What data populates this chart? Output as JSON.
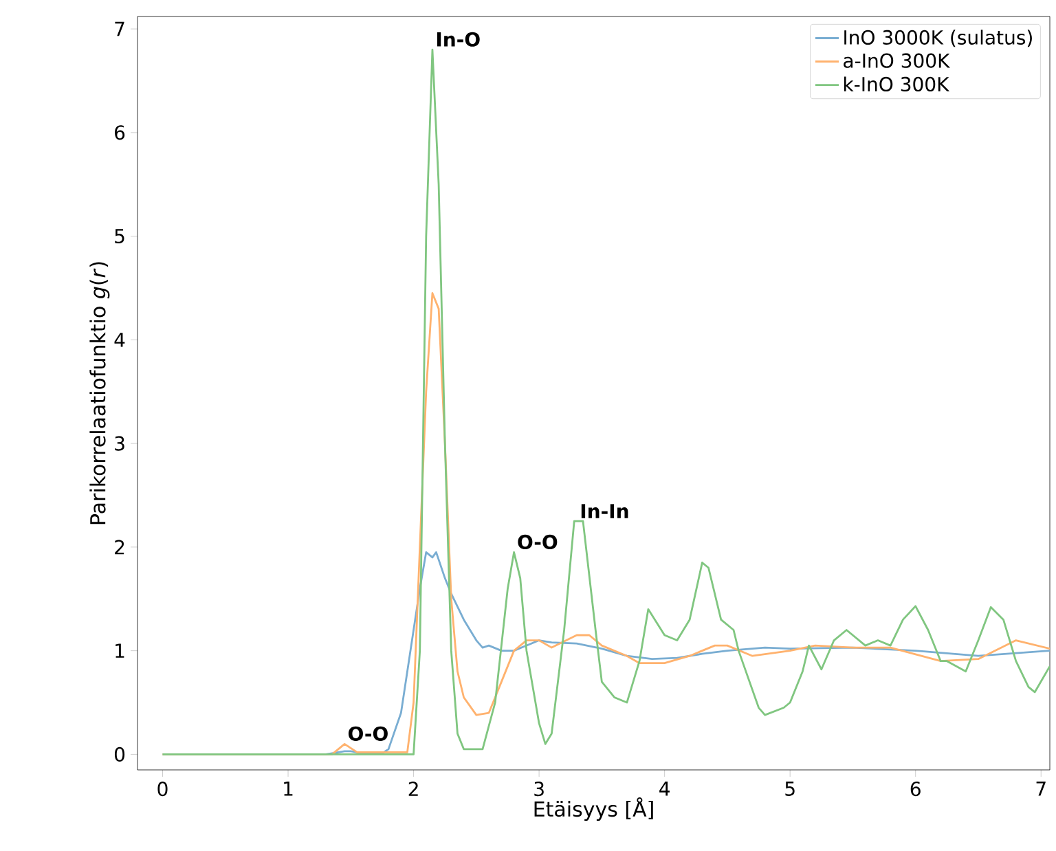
{
  "chart_data": {
    "type": "line",
    "xlabel": "Etäisyys [Å]",
    "ylabel": "Parikorrelaatiofunktio *g*(*r*)",
    "xlim": [
      -0.2,
      7.07
    ],
    "ylim": [
      -0.15,
      7.12
    ],
    "xticks": [
      0,
      1,
      2,
      3,
      4,
      5,
      6,
      7
    ],
    "yticks": [
      0,
      1,
      2,
      3,
      4,
      5,
      6,
      7
    ],
    "legend": "top right",
    "grid": false,
    "marker": "none",
    "line_style": "solid",
    "series": [
      {
        "name": "InO 3000K (sulatus)",
        "color": "#79add2",
        "x": [
          0,
          1.3,
          1.45,
          1.5,
          1.6,
          1.75,
          1.8,
          1.9,
          2.0,
          2.05,
          2.1,
          2.15,
          2.18,
          2.25,
          2.3,
          2.4,
          2.5,
          2.55,
          2.6,
          2.7,
          2.8,
          2.9,
          3.0,
          3.1,
          3.3,
          3.5,
          3.7,
          3.9,
          4.1,
          4.3,
          4.5,
          4.8,
          5.0,
          5.5,
          6.0,
          6.5,
          7.07
        ],
        "values": [
          0,
          0,
          0.03,
          0.03,
          0.01,
          0.01,
          0.05,
          0.4,
          1.2,
          1.6,
          1.95,
          1.9,
          1.95,
          1.7,
          1.55,
          1.3,
          1.1,
          1.03,
          1.05,
          1.0,
          1.0,
          1.05,
          1.1,
          1.08,
          1.07,
          1.02,
          0.95,
          0.92,
          0.93,
          0.97,
          1.0,
          1.03,
          1.02,
          1.03,
          1.0,
          0.95,
          1.0
        ]
      },
      {
        "name": "a-InO 300K",
        "color": "#ffb26e",
        "x": [
          0,
          1.35,
          1.45,
          1.55,
          1.95,
          2.0,
          2.05,
          2.1,
          2.15,
          2.2,
          2.25,
          2.3,
          2.35,
          2.4,
          2.5,
          2.6,
          2.7,
          2.8,
          2.9,
          3.0,
          3.1,
          3.3,
          3.4,
          3.5,
          3.7,
          3.8,
          4.0,
          4.2,
          4.4,
          4.5,
          4.7,
          5.0,
          5.2,
          5.5,
          5.8,
          6.2,
          6.5,
          6.8,
          7.07
        ],
        "values": [
          0,
          0,
          0.1,
          0.02,
          0.02,
          0.5,
          2.0,
          3.5,
          4.45,
          4.3,
          3.0,
          1.5,
          0.8,
          0.55,
          0.38,
          0.4,
          0.7,
          1.0,
          1.1,
          1.1,
          1.03,
          1.15,
          1.15,
          1.05,
          0.95,
          0.88,
          0.88,
          0.95,
          1.05,
          1.05,
          0.95,
          1.0,
          1.05,
          1.03,
          1.03,
          0.9,
          0.92,
          1.1,
          1.02
        ]
      },
      {
        "name": "k-InO 300K",
        "color": "#80c680",
        "x": [
          0,
          2.0,
          2.05,
          2.1,
          2.15,
          2.2,
          2.25,
          2.3,
          2.35,
          2.4,
          2.55,
          2.65,
          2.75,
          2.8,
          2.85,
          2.9,
          3.0,
          3.05,
          3.1,
          3.2,
          3.28,
          3.35,
          3.45,
          3.5,
          3.6,
          3.7,
          3.8,
          3.87,
          4.0,
          4.1,
          4.2,
          4.3,
          4.35,
          4.45,
          4.55,
          4.59,
          4.75,
          4.8,
          4.95,
          5.0,
          5.1,
          5.15,
          5.25,
          5.35,
          5.45,
          5.6,
          5.7,
          5.8,
          5.9,
          6.0,
          6.1,
          6.2,
          6.25,
          6.4,
          6.5,
          6.6,
          6.7,
          6.8,
          6.9,
          6.95,
          7.07
        ],
        "values": [
          0,
          0,
          1.0,
          5.0,
          6.8,
          5.5,
          3.0,
          1.0,
          0.2,
          0.05,
          0.05,
          0.5,
          1.6,
          1.95,
          1.7,
          1.0,
          0.3,
          0.1,
          0.2,
          1.2,
          2.25,
          2.25,
          1.2,
          0.7,
          0.55,
          0.5,
          0.9,
          1.4,
          1.15,
          1.1,
          1.3,
          1.85,
          1.8,
          1.3,
          1.2,
          1.0,
          0.45,
          0.38,
          0.45,
          0.5,
          0.8,
          1.05,
          0.82,
          1.1,
          1.2,
          1.05,
          1.1,
          1.05,
          1.3,
          1.43,
          1.2,
          0.9,
          0.9,
          0.8,
          1.1,
          1.42,
          1.3,
          0.9,
          0.65,
          0.6,
          0.85
        ]
      }
    ],
    "annotations": [
      {
        "text": "In-O",
        "x": 2.15,
        "y": 6.8
      },
      {
        "text": "O-O",
        "x": 1.45,
        "y": 0.1
      },
      {
        "text": "O-O",
        "x": 2.8,
        "y": 1.95
      },
      {
        "text": "In-In",
        "x": 3.3,
        "y": 2.25
      }
    ]
  }
}
